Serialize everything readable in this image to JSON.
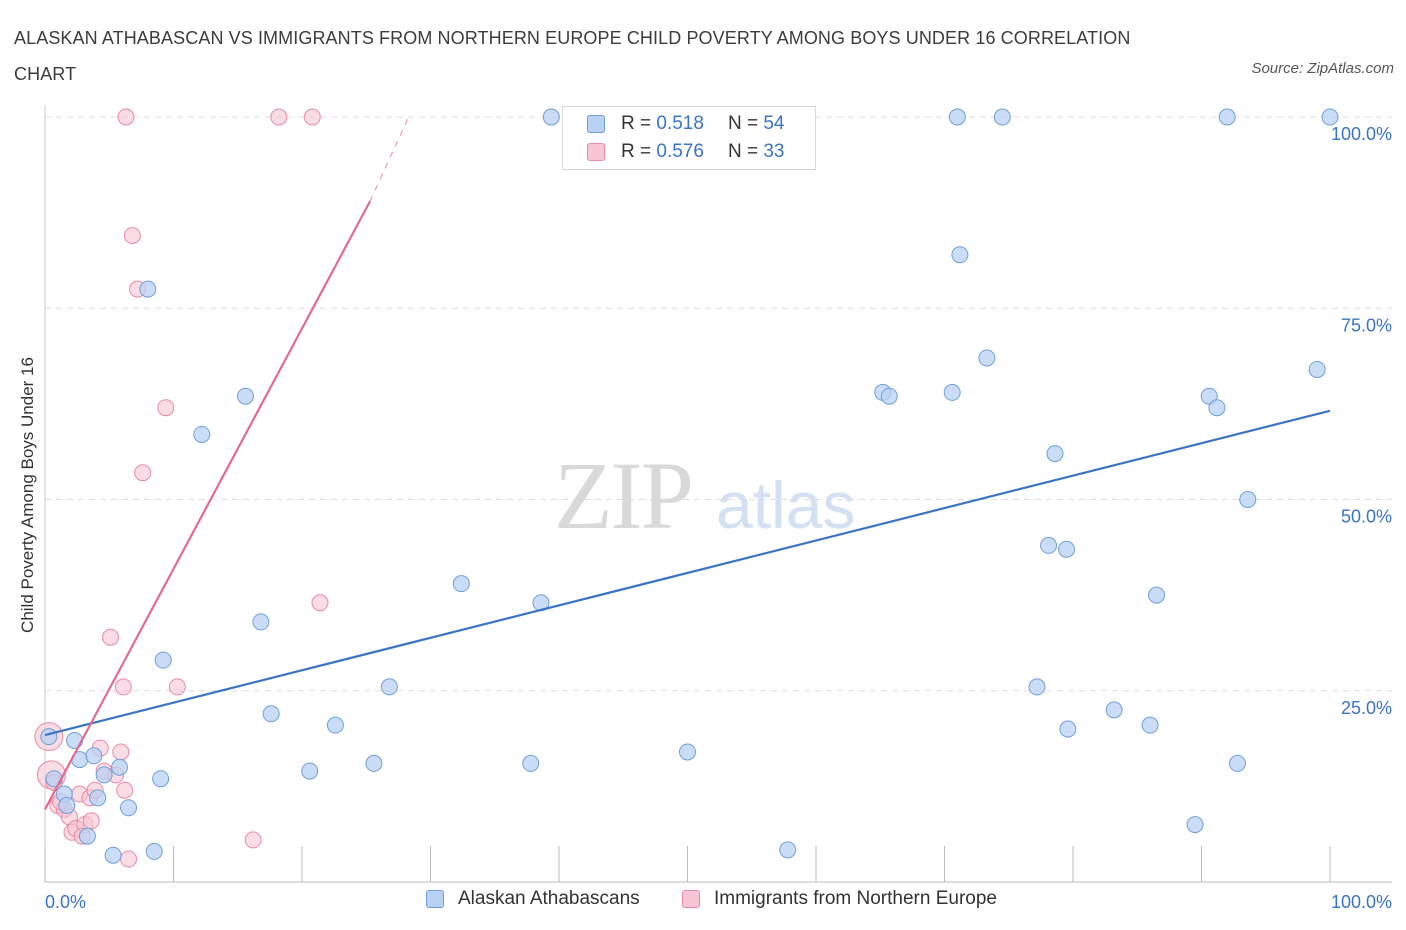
{
  "title": "ALASKAN ATHABASCAN VS IMMIGRANTS FROM NORTHERN EUROPE CHILD POVERTY AMONG BOYS UNDER 16 CORRELATION CHART",
  "source": "Source: ZipAtlas.com",
  "watermark": {
    "zip": "ZIP",
    "atlas": "atlas"
  },
  "colors": {
    "blue_fill": "#b9d2f3",
    "blue_stroke": "#6f9fd8",
    "blue_line": "#3a74c4",
    "pink_fill": "#f7c5d3",
    "pink_stroke": "#e88aa6",
    "pink_line": "#e26a92",
    "axis_text": "#3a74c4",
    "grid": "#dddddd"
  },
  "legend": {
    "r_label": "R =",
    "n_label": "N =",
    "blue": {
      "r": "0.518",
      "n": "54"
    },
    "pink": {
      "r": "0.576",
      "n": "33"
    }
  },
  "chart_data": {
    "type": "scatter",
    "title": "ALASKAN ATHABASCAN VS IMMIGRANTS FROM NORTHERN EUROPE CHILD POVERTY AMONG BOYS UNDER 16 CORRELATION CHART",
    "xlabel": "",
    "ylabel": "Child Poverty Among Boys Under 16",
    "xlim": [
      0,
      100
    ],
    "ylim": [
      0,
      100
    ],
    "x_tick_labels": [
      "0.0%",
      "100.0%"
    ],
    "y_tick_values": [
      25,
      50,
      75,
      100
    ],
    "y_tick_labels": [
      "25.0%",
      "50.0%",
      "75.0%",
      "100.0%"
    ],
    "grid": true,
    "series": [
      {
        "name": "Alaskan Athabascans",
        "color": "#6f9fd8",
        "r": 0.518,
        "n": 54,
        "trend": {
          "x": [
            0,
            100
          ],
          "y": [
            19.2,
            61.6
          ]
        },
        "points": [
          {
            "x": 0.3,
            "y": 19
          },
          {
            "x": 0.7,
            "y": 13.5
          },
          {
            "x": 1.5,
            "y": 11.5
          },
          {
            "x": 1.7,
            "y": 10
          },
          {
            "x": 2.3,
            "y": 18.5
          },
          {
            "x": 2.7,
            "y": 16
          },
          {
            "x": 3.3,
            "y": 6
          },
          {
            "x": 3.8,
            "y": 16.5
          },
          {
            "x": 4.1,
            "y": 11
          },
          {
            "x": 4.6,
            "y": 14
          },
          {
            "x": 5.3,
            "y": 3.5
          },
          {
            "x": 5.8,
            "y": 15
          },
          {
            "x": 6.5,
            "y": 9.7
          },
          {
            "x": 8.0,
            "y": 77.5
          },
          {
            "x": 8.5,
            "y": 4
          },
          {
            "x": 9.0,
            "y": 13.5
          },
          {
            "x": 9.2,
            "y": 29
          },
          {
            "x": 12.2,
            "y": 58.5
          },
          {
            "x": 15.6,
            "y": 63.5
          },
          {
            "x": 16.8,
            "y": 34
          },
          {
            "x": 17.6,
            "y": 22
          },
          {
            "x": 20.6,
            "y": 14.5
          },
          {
            "x": 22.6,
            "y": 20.5
          },
          {
            "x": 25.6,
            "y": 15.5
          },
          {
            "x": 26.8,
            "y": 25.5
          },
          {
            "x": 32.4,
            "y": 39
          },
          {
            "x": 37.8,
            "y": 15.5
          },
          {
            "x": 38.6,
            "y": 36.5
          },
          {
            "x": 39.4,
            "y": 100
          },
          {
            "x": 50.0,
            "y": 17
          },
          {
            "x": 57.8,
            "y": 4.2
          },
          {
            "x": 65.2,
            "y": 64
          },
          {
            "x": 65.7,
            "y": 63.5
          },
          {
            "x": 70.6,
            "y": 64
          },
          {
            "x": 71.0,
            "y": 100
          },
          {
            "x": 71.2,
            "y": 82
          },
          {
            "x": 73.3,
            "y": 68.5
          },
          {
            "x": 74.5,
            "y": 100
          },
          {
            "x": 78.1,
            "y": 44
          },
          {
            "x": 78.6,
            "y": 56
          },
          {
            "x": 79.5,
            "y": 43.5
          },
          {
            "x": 77.2,
            "y": 25.5
          },
          {
            "x": 79.6,
            "y": 20
          },
          {
            "x": 83.2,
            "y": 22.5
          },
          {
            "x": 86.5,
            "y": 37.5
          },
          {
            "x": 86.0,
            "y": 20.5
          },
          {
            "x": 89.5,
            "y": 7.5
          },
          {
            "x": 90.6,
            "y": 63.5
          },
          {
            "x": 91.2,
            "y": 62
          },
          {
            "x": 92.0,
            "y": 100
          },
          {
            "x": 92.8,
            "y": 15.5
          },
          {
            "x": 93.6,
            "y": 50
          },
          {
            "x": 99.0,
            "y": 67
          },
          {
            "x": 100.0,
            "y": 100
          }
        ]
      },
      {
        "name": "Immigrants from Northern Europe",
        "color": "#e88aa6",
        "r": 0.576,
        "n": 33,
        "trend": {
          "x": [
            0,
            25.3
          ],
          "y": [
            9.5,
            89
          ]
        },
        "trend_dashed": {
          "x": [
            25.3,
            28.3
          ],
          "y": [
            89,
            100
          ]
        },
        "points": [
          {
            "x": 0.3,
            "y": 19,
            "big": true
          },
          {
            "x": 0.5,
            "y": 14,
            "big": true
          },
          {
            "x": 0.7,
            "y": 13
          },
          {
            "x": 1.0,
            "y": 10
          },
          {
            "x": 1.5,
            "y": 9.5
          },
          {
            "x": 1.9,
            "y": 8.5
          },
          {
            "x": 2.1,
            "y": 6.5
          },
          {
            "x": 2.4,
            "y": 7
          },
          {
            "x": 2.7,
            "y": 11.5
          },
          {
            "x": 3.1,
            "y": 7.5
          },
          {
            "x": 3.5,
            "y": 11
          },
          {
            "x": 3.6,
            "y": 8
          },
          {
            "x": 3.9,
            "y": 12
          },
          {
            "x": 4.3,
            "y": 17.5
          },
          {
            "x": 4.6,
            "y": 14.5
          },
          {
            "x": 5.1,
            "y": 32
          },
          {
            "x": 5.5,
            "y": 14
          },
          {
            "x": 6.1,
            "y": 25.5
          },
          {
            "x": 6.2,
            "y": 12
          },
          {
            "x": 6.5,
            "y": 3
          },
          {
            "x": 6.3,
            "y": 100
          },
          {
            "x": 6.8,
            "y": 84.5
          },
          {
            "x": 7.2,
            "y": 77.5
          },
          {
            "x": 7.6,
            "y": 53.5
          },
          {
            "x": 9.4,
            "y": 62
          },
          {
            "x": 10.3,
            "y": 25.5
          },
          {
            "x": 16.2,
            "y": 5.5
          },
          {
            "x": 18.2,
            "y": 100
          },
          {
            "x": 20.8,
            "y": 100
          },
          {
            "x": 21.4,
            "y": 36.5
          },
          {
            "x": 5.9,
            "y": 17
          },
          {
            "x": 2.9,
            "y": 6
          },
          {
            "x": 1.2,
            "y": 10.5
          }
        ]
      }
    ]
  },
  "bottom_legend": {
    "blue_label": "Alaskan Athabascans",
    "pink_label": "Immigrants from Northern Europe"
  }
}
